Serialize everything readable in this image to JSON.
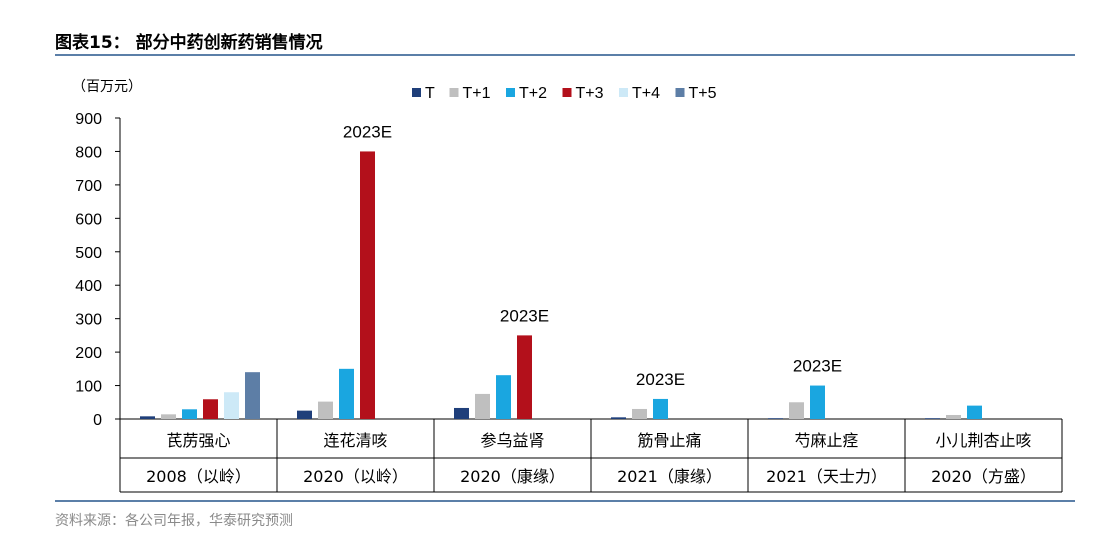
{
  "header": {
    "figure_title": "图表15：  部分中药创新药销售情况"
  },
  "footer": {
    "source": "资料来源：各公司年报，华泰研究预测"
  },
  "chart_data": {
    "type": "bar",
    "unit_label": "（百万元）",
    "ylim": [
      0,
      900
    ],
    "yticks": [
      0,
      100,
      200,
      300,
      400,
      500,
      600,
      700,
      800,
      900
    ],
    "legend_position": "top",
    "series": [
      {
        "name": "T",
        "color": "#1f3f7a",
        "values": [
          8,
          25,
          33,
          5,
          1,
          0
        ]
      },
      {
        "name": "T+1",
        "color": "#bfbfbf",
        "values": [
          14,
          52,
          75,
          30,
          50,
          12
        ]
      },
      {
        "name": "T+2",
        "color": "#1aa6e0",
        "values": [
          29,
          150,
          131,
          60,
          100,
          40
        ]
      },
      {
        "name": "T+3",
        "color": "#b3101b",
        "values": [
          59,
          800,
          250,
          null,
          null,
          null
        ]
      },
      {
        "name": "T+4",
        "color": "#cde9f7",
        "values": [
          80,
          null,
          null,
          null,
          null,
          null
        ]
      },
      {
        "name": "T+5",
        "color": "#5d7ea6",
        "values": [
          140,
          null,
          null,
          null,
          null,
          null
        ]
      }
    ],
    "categories": [
      {
        "drug": "芪苈强心",
        "year_company": "2008（以岭）"
      },
      {
        "drug": "连花清咳",
        "year_company": "2020（以岭）"
      },
      {
        "drug": "参乌益肾",
        "year_company": "2020（康缘）"
      },
      {
        "drug": "筋骨止痛",
        "year_company": "2021（康缘）"
      },
      {
        "drug": "芍麻止痉",
        "year_company": "2021（天士力）"
      },
      {
        "drug": "小儿荆杏止咳",
        "year_company": "2020（方盛）"
      }
    ],
    "annotations": [
      {
        "category_index": 1,
        "series_index": 3,
        "text": "2023E"
      },
      {
        "category_index": 2,
        "series_index": 3,
        "text": "2023E"
      },
      {
        "category_index": 3,
        "series_index": 2,
        "text": "2023E"
      },
      {
        "category_index": 4,
        "series_index": 2,
        "text": "2023E"
      }
    ]
  }
}
